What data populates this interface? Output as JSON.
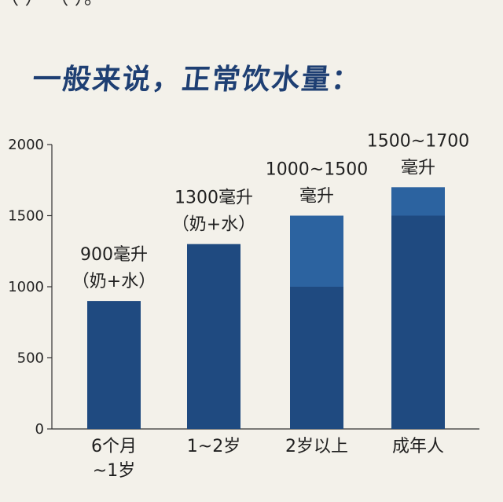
{
  "top_fragment": "（       ）             （       ）。",
  "heading": "一般来说，正常饮水量：",
  "chart_data": {
    "type": "bar",
    "categories": [
      [
        "6个月",
        "~1岁"
      ],
      [
        "1~2岁"
      ],
      [
        "2岁以上"
      ],
      [
        "成年人"
      ]
    ],
    "ranges": [
      {
        "low": 900,
        "high": 900
      },
      {
        "low": 1300,
        "high": 1300
      },
      {
        "low": 1000,
        "high": 1500
      },
      {
        "low": 1500,
        "high": 1700
      }
    ],
    "data_labels": [
      [
        "900毫升",
        "（奶+水）"
      ],
      [
        "1300毫升",
        "（奶+水）"
      ],
      [
        "1000~1500",
        "毫升"
      ],
      [
        "1500~1700",
        "毫升"
      ]
    ],
    "yticks": [
      0,
      500,
      1000,
      1500,
      2000
    ],
    "ylim": [
      0,
      2000
    ],
    "title": "",
    "xlabel": "",
    "ylabel": "",
    "grid": false,
    "colors": {
      "base": "#1f4a80",
      "range": "#2c63a0",
      "axis": "#333333"
    }
  }
}
